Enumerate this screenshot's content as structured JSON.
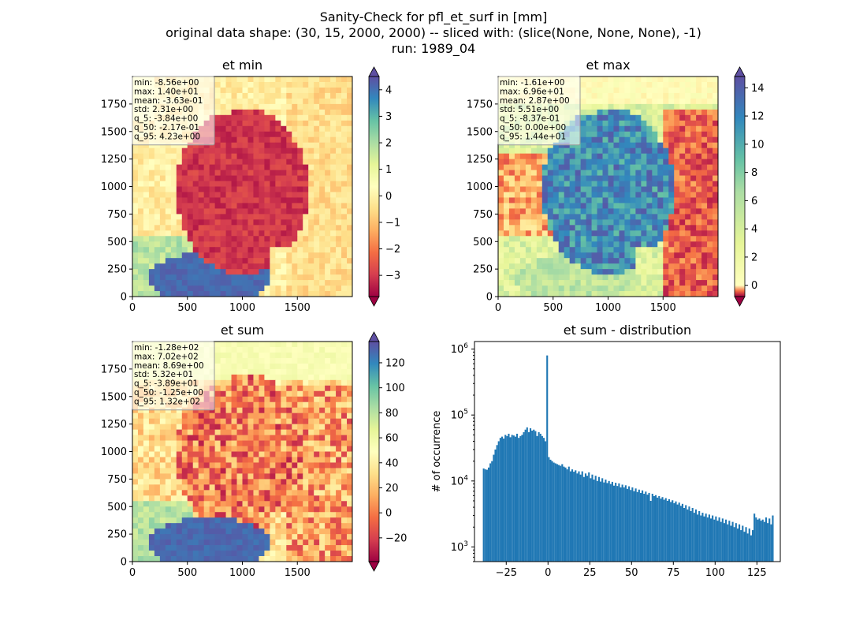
{
  "figure": {
    "title_lines": [
      "Sanity-Check for pfl_et_surf in [mm]",
      "original data shape: (30, 15, 2000, 2000) -- sliced with: (slice(None, None, None), -1)",
      "run: 1989_04"
    ]
  },
  "colors": {
    "hist_bar": "#1f77b4",
    "colormap": "Spectral"
  },
  "chart_data": [
    {
      "type": "heatmap",
      "title": "et min",
      "xlim": [
        0,
        2000
      ],
      "ylim": [
        0,
        2000
      ],
      "xticks": [
        0,
        500,
        1000,
        1500
      ],
      "yticks": [
        0,
        250,
        500,
        750,
        1000,
        1250,
        1500,
        1750
      ],
      "colorbar": {
        "min": -3.8,
        "max": 4.5,
        "ticks": [
          -3,
          -2,
          -1,
          0,
          1,
          2,
          3,
          4
        ],
        "extend": "both",
        "colormap": "Spectral"
      },
      "stats": [
        "min: -8.56e+00",
        "max: 1.40e+01",
        "mean: -3.63e-01",
        "std: 2.31e+00",
        "q_5: -3.84e+00",
        "q_50: -2.17e-01",
        "q_95: 4.23e+00"
      ]
    },
    {
      "type": "heatmap",
      "title": "et max",
      "xlim": [
        0,
        2000
      ],
      "ylim": [
        0,
        2000
      ],
      "xticks": [
        0,
        500,
        1000,
        1500
      ],
      "yticks": [
        0,
        250,
        500,
        750,
        1000,
        1250,
        1500,
        1750
      ],
      "colorbar": {
        "min": -0.8,
        "max": 14.8,
        "ticks": [
          0,
          2,
          4,
          6,
          8,
          10,
          12,
          14
        ],
        "extend": "both",
        "colormap": "Spectral",
        "two_slope_center": 0
      },
      "stats": [
        "min: -1.61e+00",
        "max: 6.96e+01",
        "mean: 2.87e+00",
        "std: 5.51e+00",
        "q_5: -8.37e-01",
        "q_50: 0.00e+00",
        "q_95: 1.44e+01"
      ]
    },
    {
      "type": "heatmap",
      "title": "et sum",
      "xlim": [
        0,
        2000
      ],
      "ylim": [
        0,
        2000
      ],
      "xticks": [
        0,
        500,
        1000,
        1500
      ],
      "yticks": [
        0,
        250,
        500,
        750,
        1000,
        1250,
        1500,
        1750
      ],
      "colorbar": {
        "min": -39,
        "max": 137,
        "ticks": [
          -20,
          0,
          20,
          40,
          60,
          80,
          100,
          120
        ],
        "extend": "both",
        "colormap": "Spectral"
      },
      "stats": [
        "min: -1.28e+02",
        "max: 7.02e+02",
        "mean: 8.69e+00",
        "std: 5.32e+01",
        "q_5: -3.89e+01",
        "q_50: -1.25e+00",
        "q_95: 1.32e+02"
      ]
    },
    {
      "type": "bar",
      "title": "et sum - distribution",
      "ylabel": "# of occurrence",
      "xlabel": "",
      "yscale": "log",
      "xlim": [
        -44,
        139
      ],
      "ylim": [
        600,
        1300000
      ],
      "xticks": [
        -25,
        0,
        25,
        50,
        75,
        100,
        125
      ],
      "yticks": [
        1000,
        10000,
        100000,
        1000000
      ],
      "ytick_labels": [
        "10^3",
        "10^4",
        "10^5",
        "10^6"
      ],
      "bin_start": -39,
      "bin_width": 1,
      "values": [
        15500,
        15000,
        14800,
        16000,
        18500,
        20000,
        25000,
        30000,
        35000,
        40000,
        45000,
        47000,
        44000,
        50000,
        48000,
        52000,
        46000,
        50000,
        49000,
        47000,
        52000,
        45000,
        48000,
        50000,
        55000,
        60000,
        65000,
        55000,
        63000,
        58000,
        60000,
        57000,
        48000,
        55000,
        52000,
        48000,
        45000,
        40000,
        800000,
        23000,
        21000,
        20000,
        19000,
        18500,
        18000,
        17500,
        17000,
        18000,
        16500,
        16000,
        15000,
        16500,
        14000,
        15000,
        13800,
        14500,
        13000,
        14000,
        12500,
        14000,
        11500,
        13000,
        12000,
        13500,
        11000,
        12500,
        10500,
        12000,
        10000,
        11500,
        9800,
        11000,
        9500,
        10500,
        9300,
        10000,
        9000,
        9700,
        8500,
        9400,
        8400,
        9200,
        8000,
        8800,
        8000,
        8600,
        7600,
        8300,
        7300,
        8000,
        7000,
        7700,
        6800,
        7400,
        6600,
        7200,
        6400,
        6900,
        6200,
        6600,
        5000,
        6400,
        5900,
        6100,
        5600,
        5900,
        5400,
        5700,
        5200,
        5500,
        5000,
        5300,
        4800,
        5100,
        4600,
        4900,
        4400,
        4700,
        4200,
        4500,
        3900,
        4300,
        3700,
        4100,
        3500,
        3900,
        3300,
        3700,
        3100,
        3500,
        3000,
        3300,
        2900,
        3200,
        2800,
        3100,
        2700,
        3000,
        2600,
        2900,
        2500,
        2800,
        2400,
        2700,
        2300,
        2600,
        2200,
        2500,
        2100,
        2400,
        2000,
        2300,
        1900,
        2200,
        1800,
        2100,
        1700,
        2000,
        1600,
        1900,
        1500,
        1800,
        3200,
        2800,
        2600,
        2700,
        2500,
        2600,
        2400,
        2800,
        2300,
        2700,
        2200,
        3000
      ]
    }
  ]
}
